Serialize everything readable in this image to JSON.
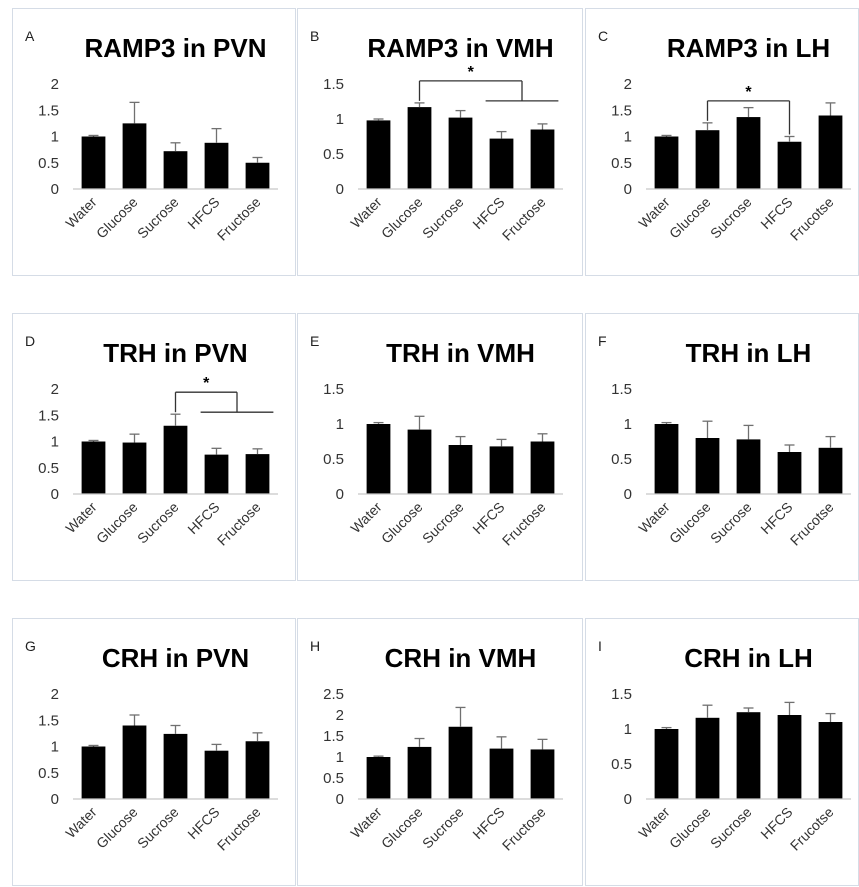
{
  "chart_data": [
    {
      "letter": "A",
      "type": "bar",
      "title": "RAMP3 in PVN",
      "categories": [
        "Water",
        "Glucose",
        "Sucrose",
        "HFCS",
        "Fructose"
      ],
      "values": [
        1.0,
        1.25,
        0.72,
        0.88,
        0.5
      ],
      "errors": [
        0.02,
        0.4,
        0.16,
        0.27,
        0.1
      ],
      "ylim": [
        0,
        2
      ],
      "yticks": [
        "0",
        "0.5",
        "1",
        "1.5",
        "2"
      ],
      "significance": []
    },
    {
      "letter": "B",
      "type": "bar",
      "title": "RAMP3 in VMH",
      "categories": [
        "Water",
        "Glucose",
        "Sucrose",
        "HFCS",
        "Fructose"
      ],
      "values": [
        0.98,
        1.17,
        1.02,
        0.72,
        0.85
      ],
      "errors": [
        0.02,
        0.06,
        0.1,
        0.1,
        0.08
      ],
      "ylim": [
        0,
        1.5
      ],
      "yticks": [
        "0",
        "0.5",
        "1",
        "1.5"
      ],
      "significance": [
        {
          "from": 1,
          "to": [
            3,
            4
          ],
          "label": "*"
        }
      ]
    },
    {
      "letter": "C",
      "type": "bar",
      "title": "RAMP3 in LH",
      "categories": [
        "Water",
        "Glucose",
        "Sucrose",
        "HFCS",
        "Frucotse"
      ],
      "values": [
        1.0,
        1.12,
        1.37,
        0.9,
        1.4
      ],
      "errors": [
        0.02,
        0.14,
        0.18,
        0.1,
        0.24
      ],
      "ylim": [
        0,
        2
      ],
      "yticks": [
        "0",
        "0.5",
        "1",
        "1.5",
        "2"
      ],
      "significance": [
        {
          "from": 1,
          "to": [
            3
          ],
          "label": "*"
        }
      ]
    },
    {
      "letter": "D",
      "type": "bar",
      "title": "TRH in PVN",
      "categories": [
        "Water",
        "Glucose",
        "Sucrose",
        "HFCS",
        "Fructose"
      ],
      "values": [
        1.0,
        0.98,
        1.3,
        0.75,
        0.76
      ],
      "errors": [
        0.02,
        0.16,
        0.22,
        0.12,
        0.1
      ],
      "ylim": [
        0,
        2
      ],
      "yticks": [
        "0",
        "0.5",
        "1",
        "1.5",
        "2"
      ],
      "significance": [
        {
          "from": 2,
          "to": [
            3,
            4
          ],
          "label": "*"
        }
      ]
    },
    {
      "letter": "E",
      "type": "bar",
      "title": "TRH in VMH",
      "categories": [
        "Water",
        "Glucose",
        "Sucrose",
        "HFCS",
        "Fructose"
      ],
      "values": [
        1.0,
        0.92,
        0.7,
        0.68,
        0.75
      ],
      "errors": [
        0.02,
        0.19,
        0.12,
        0.1,
        0.11
      ],
      "ylim": [
        0,
        1.5
      ],
      "yticks": [
        "0",
        "0.5",
        "1",
        "1.5"
      ],
      "significance": []
    },
    {
      "letter": "F",
      "type": "bar",
      "title": "TRH in LH",
      "categories": [
        "Water",
        "Glucose",
        "Sucrose",
        "HFCS",
        "Frucotse"
      ],
      "values": [
        1.0,
        0.8,
        0.78,
        0.6,
        0.66
      ],
      "errors": [
        0.02,
        0.24,
        0.2,
        0.1,
        0.16
      ],
      "ylim": [
        0,
        1.5
      ],
      "yticks": [
        "0",
        "0.5",
        "1",
        "1.5"
      ],
      "significance": []
    },
    {
      "letter": "G",
      "type": "bar",
      "title": "CRH in PVN",
      "categories": [
        "Water",
        "Glucose",
        "Sucrose",
        "HFCS",
        "Fructose"
      ],
      "values": [
        1.0,
        1.4,
        1.24,
        0.92,
        1.1
      ],
      "errors": [
        0.02,
        0.2,
        0.16,
        0.12,
        0.16
      ],
      "ylim": [
        0,
        2
      ],
      "yticks": [
        "0",
        "0.5",
        "1",
        "1.5",
        "2"
      ],
      "significance": []
    },
    {
      "letter": "H",
      "type": "bar",
      "title": "CRH in VMH",
      "categories": [
        "Water",
        "Glucose",
        "Sucrose",
        "HFCS",
        "Fructose"
      ],
      "values": [
        1.0,
        1.24,
        1.72,
        1.2,
        1.18
      ],
      "errors": [
        0.02,
        0.2,
        0.46,
        0.28,
        0.24
      ],
      "ylim": [
        0,
        2.5
      ],
      "yticks": [
        "0",
        "0.5",
        "1",
        "1.5",
        "2",
        "2.5"
      ],
      "significance": []
    },
    {
      "letter": "I",
      "type": "bar",
      "title": "CRH in LH",
      "categories": [
        "Water",
        "Glucose",
        "Sucrose",
        "HFCS",
        "Frucotse"
      ],
      "values": [
        1.0,
        1.16,
        1.24,
        1.2,
        1.1
      ],
      "errors": [
        0.02,
        0.18,
        0.06,
        0.18,
        0.12
      ],
      "ylim": [
        0,
        1.5
      ],
      "yticks": [
        "0",
        "0.5",
        "1",
        "1.5"
      ],
      "significance": []
    }
  ]
}
